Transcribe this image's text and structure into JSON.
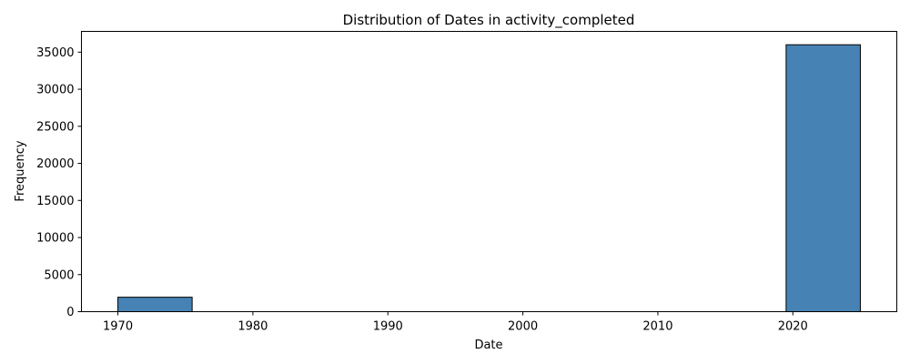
{
  "chart_data": {
    "type": "bar",
    "title": "Distribution of Dates in activity_completed",
    "xlabel": "Date",
    "ylabel": "Frequency",
    "xlim": [
      1967.3,
      2027.7
    ],
    "ylim": [
      0,
      37800
    ],
    "xticks": [
      1970,
      1980,
      1990,
      2000,
      2010,
      2020
    ],
    "yticks": [
      0,
      5000,
      10000,
      15000,
      20000,
      25000,
      30000,
      35000
    ],
    "bins": [
      {
        "start": 1970.0,
        "end": 1975.5,
        "count": 1950
      },
      {
        "start": 1975.5,
        "end": 1981.0,
        "count": 0
      },
      {
        "start": 1981.0,
        "end": 1986.5,
        "count": 0
      },
      {
        "start": 1986.5,
        "end": 1992.0,
        "count": 0
      },
      {
        "start": 1992.0,
        "end": 1997.5,
        "count": 0
      },
      {
        "start": 1997.5,
        "end": 2003.0,
        "count": 0
      },
      {
        "start": 2003.0,
        "end": 2008.5,
        "count": 0
      },
      {
        "start": 2008.5,
        "end": 2014.0,
        "count": 0
      },
      {
        "start": 2014.0,
        "end": 2019.5,
        "count": 0
      },
      {
        "start": 2019.5,
        "end": 2025.0,
        "count": 36000
      }
    ],
    "bar_color": "#4682b4",
    "edge_color": "#000000",
    "grid": false,
    "legend": "none"
  }
}
